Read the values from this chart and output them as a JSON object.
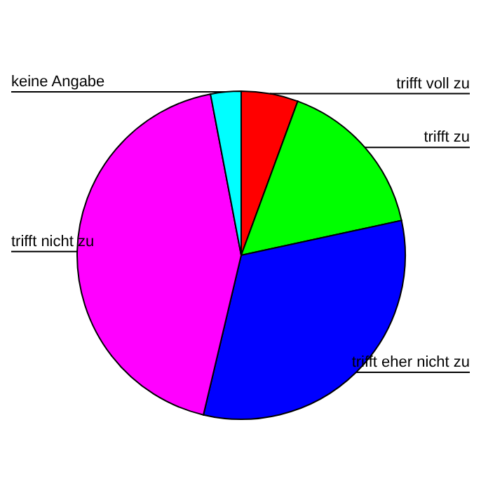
{
  "chart_data": {
    "type": "pie",
    "categories": [
      "trifft voll zu",
      "trifft zu",
      "trifft eher nicht zu",
      "trifft nicht zu",
      "keine Angabe"
    ],
    "values": [
      5.6,
      16.0,
      32.1,
      43.3,
      3.0
    ],
    "colors": [
      "#ff0000",
      "#00ff00",
      "#0000ff",
      "#ff00ff",
      "#00ffff"
    ],
    "legend": false
  }
}
